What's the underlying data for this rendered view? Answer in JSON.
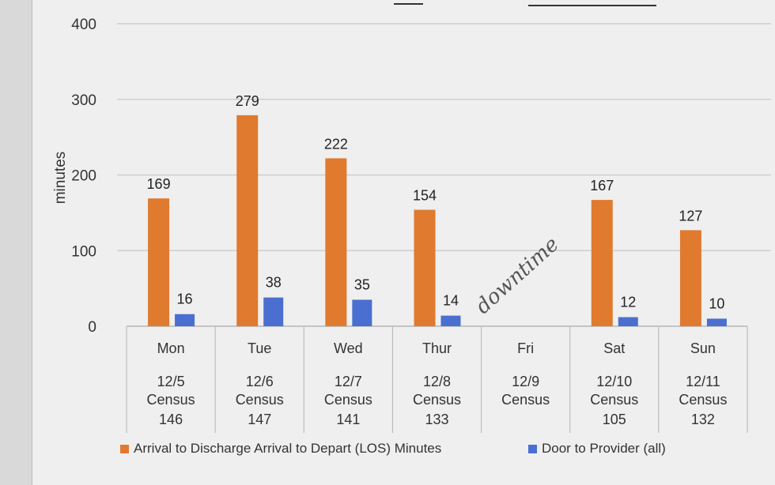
{
  "chart_data": {
    "type": "bar",
    "ylabel": "minutes",
    "ylim": [
      0,
      400
    ],
    "yticks": [
      0,
      100,
      200,
      300,
      400
    ],
    "grid": true,
    "legend_position": "bottom",
    "categories": [
      {
        "day": "Mon",
        "date": "12/5",
        "census_label": "Census",
        "census": "146"
      },
      {
        "day": "Tue",
        "date": "12/6",
        "census_label": "Census",
        "census": "147"
      },
      {
        "day": "Wed",
        "date": "12/7",
        "census_label": "Census",
        "census": "141"
      },
      {
        "day": "Thur",
        "date": "12/8",
        "census_label": "Census",
        "census": "133"
      },
      {
        "day": "Fri",
        "date": "12/9",
        "census_label": "Census",
        "census": ""
      },
      {
        "day": "Sat",
        "date": "12/10",
        "census_label": "Census",
        "census": "105"
      },
      {
        "day": "Sun",
        "date": "12/11",
        "census_label": "Census",
        "census": "132"
      }
    ],
    "series": [
      {
        "name": "Arrival to Discharge Arrival to Depart (LOS) Minutes",
        "color": "#e07a2e",
        "values": [
          169,
          279,
          222,
          154,
          null,
          167,
          127
        ]
      },
      {
        "name": "Door to Provider (all)",
        "color": "#4a6fd0",
        "values": [
          16,
          38,
          35,
          14,
          null,
          12,
          10
        ]
      }
    ],
    "annotations": [
      {
        "text": "downtime",
        "category": "Fri",
        "style": "handwritten"
      }
    ]
  }
}
